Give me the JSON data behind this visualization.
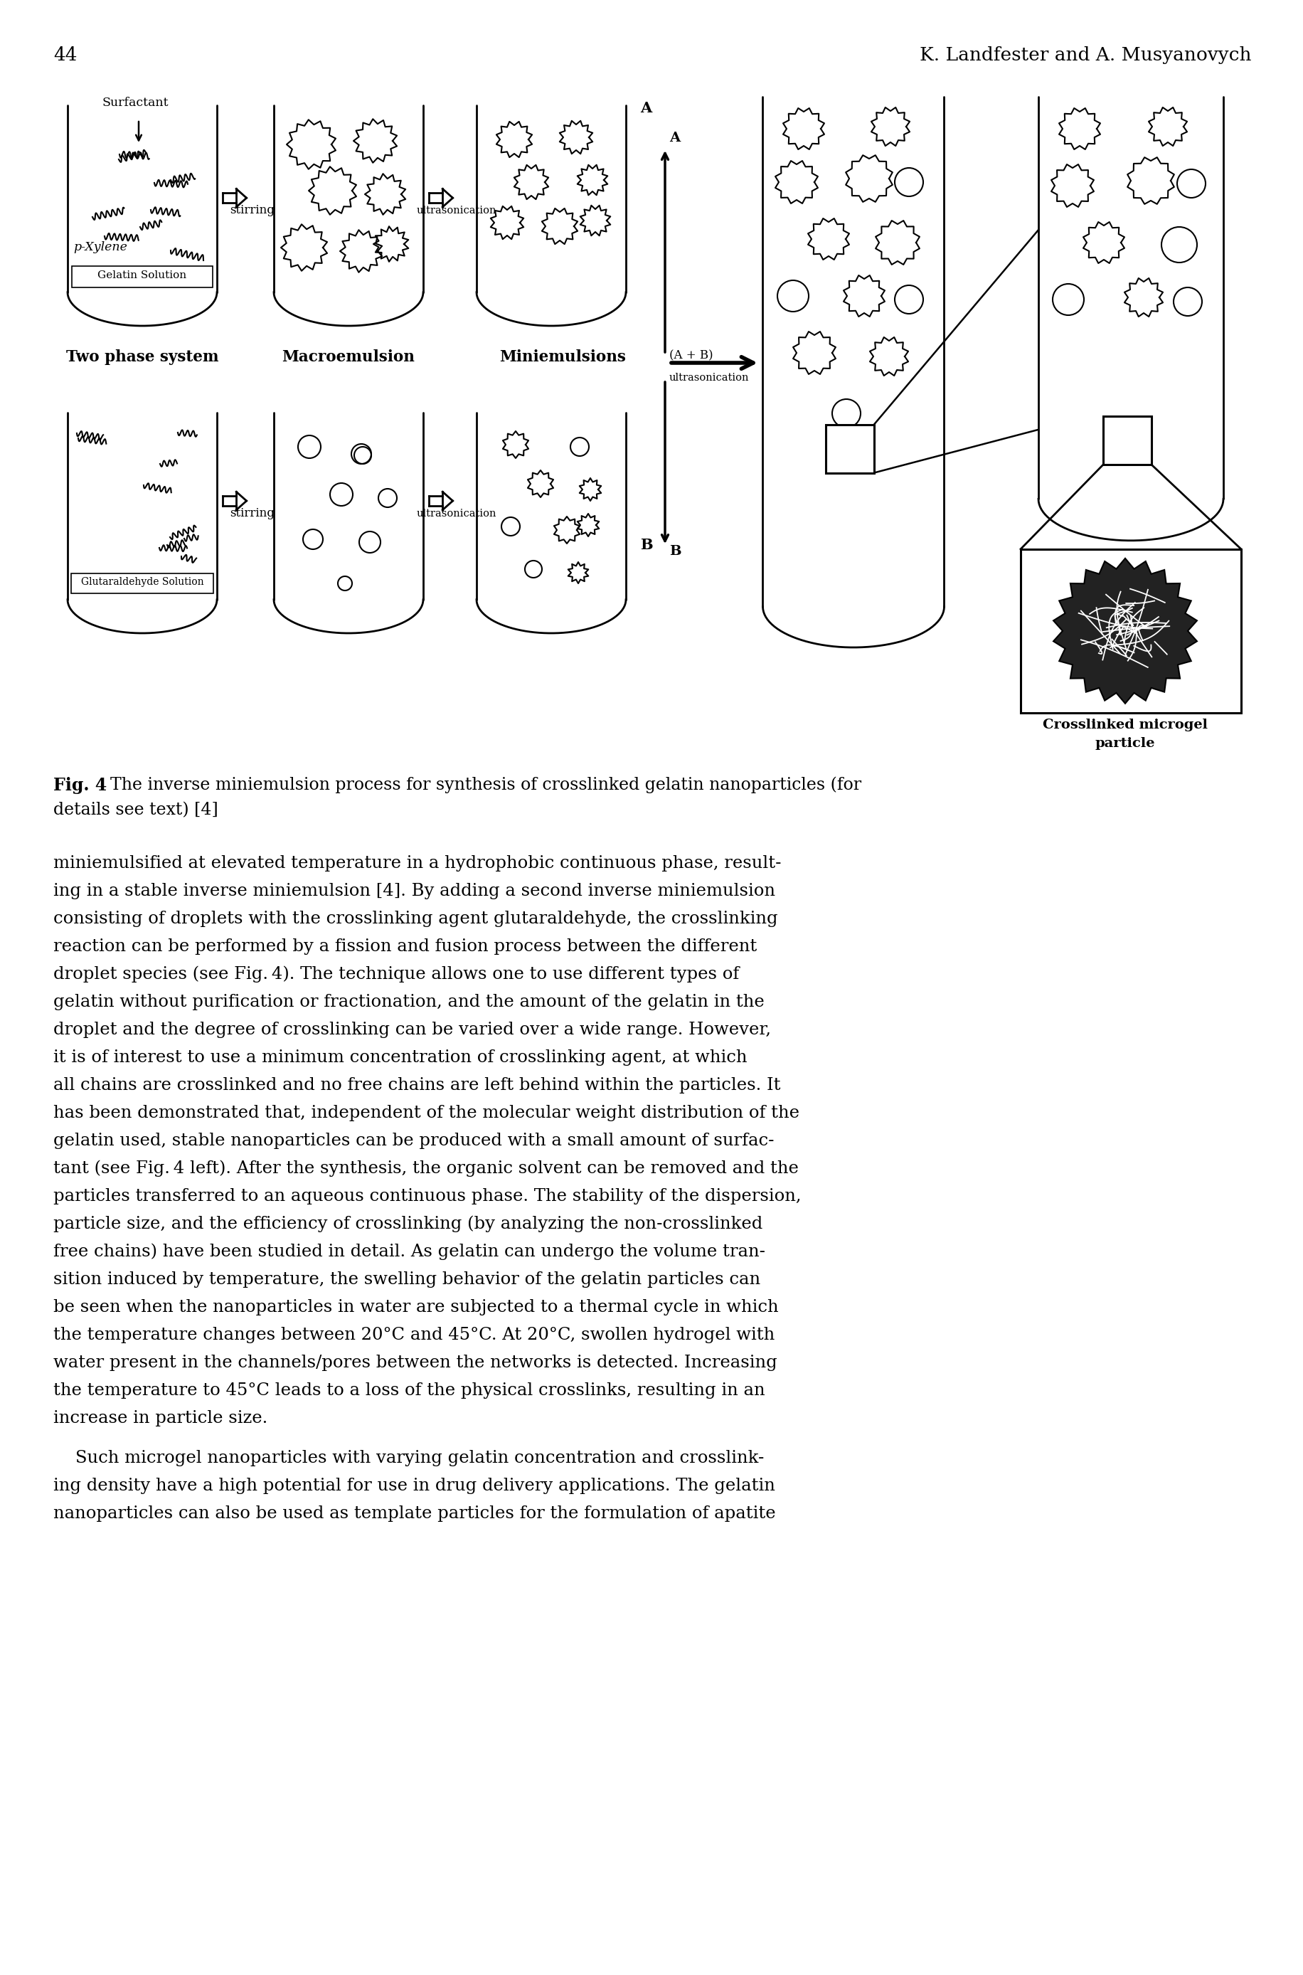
{
  "page_number": "44",
  "header_right": "K. Landfester and A. Musyanovych",
  "fig_caption_bold": "Fig. 4",
  "fig_caption_rest": "  The inverse miniemulsion process for synthesis of crosslinked gelatin nanoparticles (for\ndetails see text) [4]",
  "body_text": [
    "miniemulsified at elevated temperature in a hydrophobic continuous phase, result-",
    "ing in a stable inverse miniemulsion [4]. By adding a second inverse miniemulsion",
    "consisting of droplets with the crosslinking agent glutaraldehyde, the crosslinking",
    "reaction can be performed by a fission and fusion process between the different",
    "droplet species (see Fig. 4). The technique allows one to use different types of",
    "gelatin without purification or fractionation, and the amount of the gelatin in the",
    "droplet and the degree of crosslinking can be varied over a wide range. However,",
    "it is of interest to use a minimum concentration of crosslinking agent, at which",
    "all chains are crosslinked and no free chains are left behind within the particles. It",
    "has been demonstrated that, independent of the molecular weight distribution of the",
    "gelatin used, stable nanoparticles can be produced with a small amount of surfac-",
    "tant (see Fig. 4 left). After the synthesis, the organic solvent can be removed and the",
    "particles transferred to an aqueous continuous phase. The stability of the dispersion,",
    "particle size, and the efficiency of crosslinking (by analyzing the non-crosslinked",
    "free chains) have been studied in detail. As gelatin can undergo the volume tran-",
    "sition induced by temperature, the swelling behavior of the gelatin particles can",
    "be seen when the nanoparticles in water are subjected to a thermal cycle in which",
    "the temperature changes between 20°C and 45°C. At 20°C, swollen hydrogel with",
    "water present in the channels/pores between the networks is detected. Increasing",
    "the temperature to 45°C leads to a loss of the physical crosslinks, resulting in an",
    "increase in particle size.",
    "",
    "    Such microgel nanoparticles with varying gelatin concentration and crosslink-",
    "ing density have a high potential for use in drug delivery applications. The gelatin",
    "nanoparticles can also be used as template particles for the formulation of apatite"
  ],
  "background_color": "#ffffff",
  "text_color": "#000000"
}
